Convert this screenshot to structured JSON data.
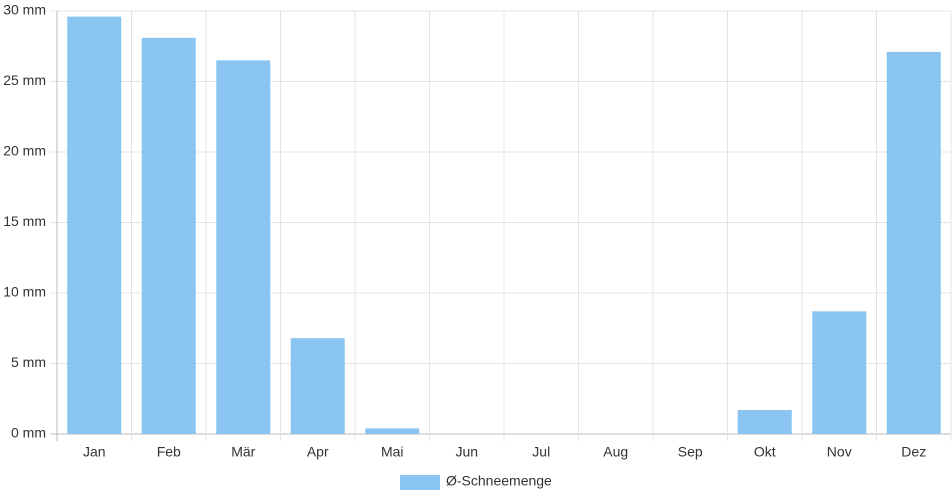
{
  "chart_data": {
    "type": "bar",
    "categories": [
      "Jan",
      "Feb",
      "Mär",
      "Apr",
      "Mai",
      "Jun",
      "Jul",
      "Aug",
      "Sep",
      "Okt",
      "Nov",
      "Dez"
    ],
    "series": [
      {
        "name": "Ø-Schneemenge",
        "color": "#89c5f0",
        "values": [
          29.6,
          28.1,
          26.5,
          6.8,
          0.4,
          0,
          0,
          0,
          0,
          1.7,
          8.7,
          27.1
        ]
      }
    ],
    "ylim": [
      0,
      30
    ],
    "yticks": [
      {
        "value": 0,
        "label": "0 mm"
      },
      {
        "value": 5,
        "label": "5 mm"
      },
      {
        "value": 10,
        "label": "10 mm"
      },
      {
        "value": 15,
        "label": "15 mm"
      },
      {
        "value": 20,
        "label": "20 mm"
      },
      {
        "value": 25,
        "label": "25 mm"
      },
      {
        "value": 30,
        "label": "30 mm"
      }
    ],
    "grid": true,
    "legend": "bottom"
  }
}
